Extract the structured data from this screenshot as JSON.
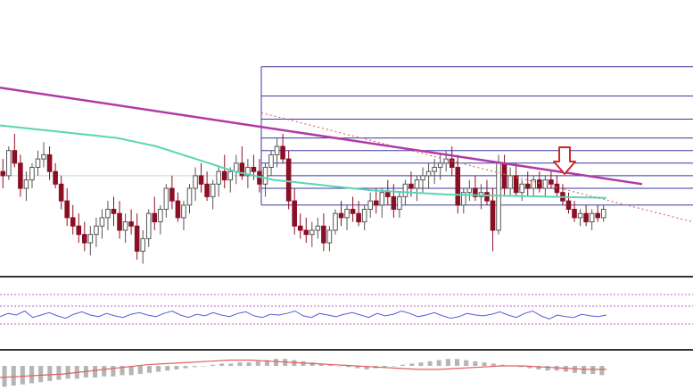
{
  "colors": {
    "background": "#ffffff",
    "bull_candle": "#555555",
    "bear_candle": "#8b0f24",
    "trendline": "#b13aa6",
    "sma_line": "#59d6b2",
    "fib_lines": "#3a3a9e",
    "dotted_trend": "#e06b6b",
    "arrow": "#cc2a2a",
    "rsi_line": "#5a5ad6",
    "rsi_levels": "#c65cc6",
    "macd_bars": "#b5b5b5",
    "macd_signal": "#e06060",
    "panel_separator": "#333333"
  },
  "annotations": {
    "arrow_icon": "down-arrow-icon"
  },
  "chart_data": [
    {
      "type": "candlestick",
      "title": "",
      "xlabel": "",
      "ylabel": "",
      "ylim": [
        0,
        100
      ],
      "candles": [
        [
          48,
          54,
          40,
          46
        ],
        [
          46,
          60,
          44,
          58
        ],
        [
          58,
          66,
          50,
          52
        ],
        [
          52,
          56,
          36,
          40
        ],
        [
          40,
          48,
          34,
          44
        ],
        [
          44,
          52,
          40,
          50
        ],
        [
          50,
          58,
          46,
          54
        ],
        [
          54,
          62,
          50,
          56
        ],
        [
          56,
          60,
          44,
          48
        ],
        [
          48,
          52,
          40,
          42
        ],
        [
          42,
          46,
          30,
          34
        ],
        [
          34,
          40,
          22,
          26
        ],
        [
          26,
          32,
          18,
          22
        ],
        [
          22,
          28,
          14,
          18
        ],
        [
          18,
          24,
          10,
          14
        ],
        [
          14,
          22,
          8,
          18
        ],
        [
          18,
          26,
          12,
          22
        ],
        [
          22,
          30,
          16,
          26
        ],
        [
          26,
          34,
          20,
          30
        ],
        [
          30,
          36,
          22,
          28
        ],
        [
          28,
          34,
          16,
          20
        ],
        [
          20,
          28,
          14,
          24
        ],
        [
          24,
          30,
          18,
          22
        ],
        [
          22,
          28,
          6,
          10
        ],
        [
          10,
          20,
          4,
          16
        ],
        [
          16,
          30,
          12,
          28
        ],
        [
          28,
          36,
          20,
          24
        ],
        [
          24,
          32,
          18,
          30
        ],
        [
          30,
          42,
          26,
          40
        ],
        [
          40,
          46,
          30,
          34
        ],
        [
          34,
          38,
          24,
          26
        ],
        [
          26,
          34,
          20,
          32
        ],
        [
          32,
          42,
          28,
          40
        ],
        [
          40,
          50,
          34,
          46
        ],
        [
          46,
          52,
          38,
          42
        ],
        [
          42,
          48,
          34,
          36
        ],
        [
          36,
          44,
          30,
          42
        ],
        [
          42,
          50,
          36,
          48
        ],
        [
          48,
          56,
          40,
          44
        ],
        [
          44,
          50,
          38,
          48
        ],
        [
          48,
          56,
          42,
          52
        ],
        [
          52,
          60,
          44,
          46
        ],
        [
          46,
          54,
          40,
          50
        ],
        [
          50,
          56,
          44,
          48
        ],
        [
          48,
          54,
          38,
          42
        ],
        [
          42,
          52,
          36,
          50
        ],
        [
          50,
          58,
          46,
          56
        ],
        [
          56,
          64,
          50,
          60
        ],
        [
          60,
          66,
          52,
          54
        ],
        [
          54,
          58,
          30,
          34
        ],
        [
          34,
          40,
          18,
          22
        ],
        [
          22,
          28,
          16,
          20
        ],
        [
          20,
          26,
          14,
          18
        ],
        [
          18,
          24,
          12,
          20
        ],
        [
          20,
          26,
          16,
          22
        ],
        [
          22,
          28,
          10,
          14
        ],
        [
          14,
          22,
          10,
          20
        ],
        [
          20,
          30,
          18,
          28
        ],
        [
          28,
          34,
          22,
          26
        ],
        [
          26,
          32,
          20,
          30
        ],
        [
          30,
          36,
          24,
          28
        ],
        [
          28,
          34,
          22,
          24
        ],
        [
          24,
          32,
          20,
          30
        ],
        [
          30,
          38,
          26,
          34
        ],
        [
          34,
          40,
          28,
          32
        ],
        [
          32,
          40,
          26,
          38
        ],
        [
          38,
          44,
          32,
          36
        ],
        [
          36,
          42,
          26,
          30
        ],
        [
          30,
          38,
          26,
          36
        ],
        [
          36,
          44,
          32,
          42
        ],
        [
          42,
          48,
          36,
          40
        ],
        [
          40,
          46,
          34,
          44
        ],
        [
          44,
          50,
          38,
          46
        ],
        [
          46,
          52,
          40,
          48
        ],
        [
          48,
          54,
          42,
          50
        ],
        [
          50,
          56,
          44,
          52
        ],
        [
          52,
          58,
          48,
          54
        ],
        [
          54,
          60,
          46,
          50
        ],
        [
          50,
          56,
          28,
          32
        ],
        [
          32,
          40,
          28,
          38
        ],
        [
          38,
          44,
          34,
          40
        ],
        [
          40,
          46,
          34,
          36
        ],
        [
          36,
          42,
          30,
          38
        ],
        [
          38,
          44,
          32,
          34
        ],
        [
          34,
          40,
          10,
          20
        ],
        [
          20,
          56,
          18,
          52
        ],
        [
          52,
          56,
          36,
          40
        ],
        [
          40,
          50,
          36,
          46
        ],
        [
          46,
          52,
          36,
          38
        ],
        [
          38,
          44,
          34,
          42
        ],
        [
          42,
          48,
          36,
          40
        ],
        [
          40,
          46,
          36,
          44
        ],
        [
          44,
          48,
          38,
          40
        ],
        [
          40,
          46,
          36,
          44
        ],
        [
          44,
          48,
          40,
          42
        ],
        [
          42,
          46,
          36,
          38
        ],
        [
          38,
          42,
          32,
          34
        ],
        [
          34,
          38,
          28,
          30
        ],
        [
          30,
          34,
          24,
          26
        ],
        [
          26,
          30,
          22,
          28
        ],
        [
          28,
          32,
          22,
          24
        ],
        [
          24,
          30,
          20,
          28
        ],
        [
          28,
          32,
          24,
          26
        ],
        [
          26,
          32,
          24,
          30
        ]
      ],
      "series": [
        {
          "values": [
            70,
            69,
            68,
            67,
            66,
            65,
            64,
            62,
            60,
            57,
            54,
            51,
            48,
            46,
            44,
            43,
            42,
            41,
            40,
            39,
            38.5,
            38,
            37.5,
            37,
            36.8,
            36.6,
            36.4,
            36.2,
            36,
            35.8,
            35.6,
            35.4
          ]
        }
      ],
      "trendline_start": [
        0,
        88
      ],
      "trendline_end": [
        100,
        42
      ],
      "fib_levels": [
        98,
        84,
        73,
        64,
        58,
        52,
        46,
        40,
        32
      ]
    },
    {
      "type": "line",
      "title": "",
      "ylim": [
        0,
        100
      ],
      "levels": [
        70,
        30
      ],
      "series": [
        {
          "values": [
            48,
            52,
            50,
            55,
            47,
            50,
            53,
            49,
            46,
            51,
            54,
            50,
            48,
            52,
            49,
            47,
            51,
            53,
            50,
            48,
            52,
            55,
            50,
            47,
            51,
            49,
            53,
            50,
            48,
            52,
            54,
            49,
            47,
            51,
            50,
            52,
            55,
            49,
            47,
            52,
            50,
            48,
            51,
            53,
            50,
            47,
            52,
            49,
            51,
            55,
            52,
            48,
            50,
            53,
            49,
            46,
            48,
            52,
            50,
            49,
            51,
            54,
            50,
            47,
            52,
            55,
            49,
            45,
            50,
            48,
            47,
            51,
            49,
            48,
            50
          ]
        }
      ]
    },
    {
      "type": "bar",
      "title": "",
      "values": [
        -18,
        -17,
        -16,
        -15,
        -14,
        -13,
        -12,
        -11,
        -11,
        -10,
        -10,
        -9,
        -9,
        -8,
        -8,
        -7,
        -6,
        -5,
        -4,
        -3,
        -2,
        -1,
        0,
        1,
        2,
        2,
        3,
        3,
        4,
        5,
        6,
        6,
        5,
        4,
        3,
        2,
        1,
        0,
        -1,
        -2,
        -3,
        -2,
        -1,
        0,
        1,
        2,
        3,
        4,
        5,
        6,
        6,
        5,
        4,
        3,
        2,
        1,
        0,
        -1,
        -2,
        -3,
        -4,
        -4,
        -5,
        -6,
        -7,
        -7,
        -8
      ],
      "series": [
        {
          "values": [
            -10,
            -9,
            -8,
            -7,
            -5,
            -3,
            -1,
            1,
            2,
            3,
            4,
            5,
            5,
            4,
            3,
            2,
            1,
            0,
            -1,
            -2,
            -3,
            -3,
            -2,
            -1,
            0,
            0,
            -1,
            -2,
            -3,
            -3
          ]
        }
      ]
    }
  ]
}
